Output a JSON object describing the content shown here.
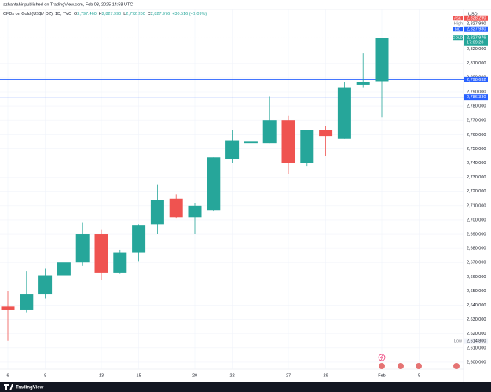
{
  "header": {
    "publisher": "azhantahir published on TradingView.com, Feb 03, 2025 14:58 UTC"
  },
  "footer": {
    "brand": "TradingView"
  },
  "chart_data": {
    "type": "candlestick",
    "legend": {
      "symbol": "CFDs on Gold (US$ / OZ), 1D, TVC",
      "items": [
        {
          "key": "O",
          "value": "2,797.460"
        },
        {
          "key": "H",
          "value": "2,827.990"
        },
        {
          "key": "L",
          "value": "2,772.200"
        },
        {
          "key": "C",
          "value": "2,827.976"
        }
      ],
      "change": "+30.516 (+1.09%)"
    },
    "currency": "USD",
    "categories": [
      "6",
      null,
      "8",
      null,
      null,
      "13",
      null,
      "15",
      null,
      null,
      "20",
      null,
      "22",
      null,
      null,
      "27",
      null,
      "29",
      null,
      null,
      "Feb",
      null,
      "5",
      null,
      null
    ],
    "open": [
      2639,
      2637,
      2648,
      2661,
      2670,
      2690,
      2663,
      2677,
      2697,
      2715,
      2702,
      2707,
      2743,
      2754,
      2754,
      2770,
      2740,
      2763,
      2757,
      2795,
      2797.46,
      null,
      null,
      null,
      null
    ],
    "high": [
      2650,
      2664,
      2666,
      2678,
      2698,
      2693,
      2679,
      2697,
      2725,
      2718,
      2712,
      2744,
      2763,
      2762,
      2787,
      2773,
      2763,
      2766,
      2797,
      2817,
      2827.99,
      null,
      null,
      null,
      null
    ],
    "low": [
      2615,
      2635,
      2645,
      2660,
      2668,
      2658,
      2662,
      2671,
      2690,
      2701,
      2690,
      2706,
      2740,
      2736,
      2754,
      2732,
      2738,
      2745,
      2757,
      2793,
      2772.2,
      null,
      null,
      null,
      null
    ],
    "close": [
      2637,
      2648,
      2661,
      2670,
      2690,
      2663,
      2677,
      2696,
      2714,
      2702,
      2710,
      2744,
      2756,
      2755,
      2770,
      2740,
      2763,
      2759,
      2793,
      2797,
      2827.976,
      null,
      null,
      null,
      null
    ],
    "up_color": "#26a69a",
    "down_color": "#ef5350",
    "ylim": [
      2595,
      2848
    ],
    "yticks": [
      {
        "value": 2600,
        "label": "2,600.000"
      },
      {
        "value": 2610,
        "label": "2,610.000"
      },
      {
        "value": 2620,
        "label": "2,620.000"
      },
      {
        "value": 2630,
        "label": "2,630.000"
      },
      {
        "value": 2640,
        "label": "2,640.000"
      },
      {
        "value": 2650,
        "label": "2,650.000"
      },
      {
        "value": 2660,
        "label": "2,660.000"
      },
      {
        "value": 2670,
        "label": "2,670.000"
      },
      {
        "value": 2680,
        "label": "2,680.000"
      },
      {
        "value": 2690,
        "label": "2,690.000"
      },
      {
        "value": 2700,
        "label": "2,700.000"
      },
      {
        "value": 2710,
        "label": "2,710.000"
      },
      {
        "value": 2720,
        "label": "2,720.000"
      },
      {
        "value": 2730,
        "label": "2,730.000"
      },
      {
        "value": 2740,
        "label": "2,740.000"
      },
      {
        "value": 2750,
        "label": "2,750.000"
      },
      {
        "value": 2760,
        "label": "2,760.000"
      },
      {
        "value": 2770,
        "label": "2,770.000"
      },
      {
        "value": 2780,
        "label": "2,780.000"
      },
      {
        "value": 2790,
        "label": "2,790.000"
      },
      {
        "value": 2800,
        "label": "2,800.000"
      },
      {
        "value": 2810,
        "label": "2,810.000"
      },
      {
        "value": 2820,
        "label": "2,820.000"
      }
    ],
    "grid": true,
    "hlines": [
      {
        "value": 2798.632,
        "label": "2,798.632",
        "color": "#2962ff"
      },
      {
        "value": 2786.33,
        "label": "2,786.330",
        "color": "#2962ff"
      }
    ],
    "price_markers": [
      {
        "tag": "ASK",
        "value": 2828.29,
        "label": "2,828.290",
        "color": "#ef5350"
      },
      {
        "tag": "High",
        "value": 2827.99,
        "label": "2,827.990"
      },
      {
        "tag": "BID",
        "value": 2827.98,
        "label": "2,827.980",
        "color": "#2962ff"
      },
      {
        "tag": "GOLD",
        "value": 2827.976,
        "label": "2,827.976",
        "countdown": "17:09:28",
        "color": "#26a69a"
      }
    ],
    "low_marker": {
      "tag": "Low",
      "value": 2614.8,
      "label": "2,614.800"
    }
  }
}
